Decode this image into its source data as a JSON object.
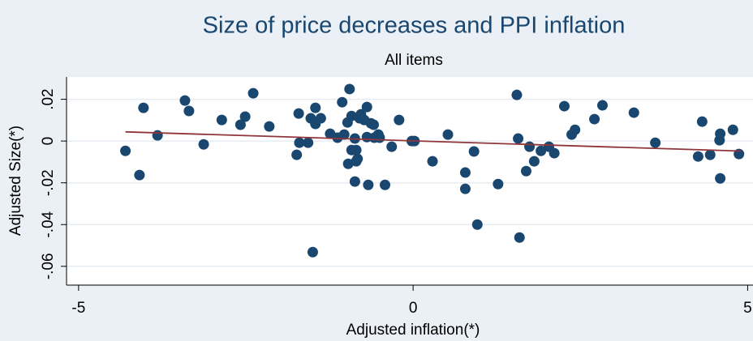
{
  "chart_data": {
    "type": "scatter",
    "title": "Size of price decreases and PPI inflation",
    "subtitle": "All items",
    "x_label": "Adjusted inflation(*)",
    "y_label": "Adjusted Size(*)",
    "xlim": [
      -5.18,
      5.08
    ],
    "ylim": [
      -0.069,
      0.0307
    ],
    "xticks": [
      -5,
      0,
      5
    ],
    "yticks": [
      {
        "value": 0.02,
        "label": ".02"
      },
      0,
      {
        "value": -0.02,
        "label": "-.02"
      },
      {
        "value": -0.04,
        "label": "-.04"
      },
      {
        "value": -0.06,
        "label": "-.06"
      }
    ],
    "grid": true,
    "series": [
      {
        "mode": "markers",
        "color": "#1a476f",
        "x": [
          -4.3,
          -4.09,
          -4.03,
          -3.82,
          -3.41,
          -3.35,
          -3.13,
          -2.86,
          -2.58,
          -2.51,
          -2.39,
          -2.15,
          -1.74,
          -1.71,
          -1.7,
          -1.57,
          -1.53,
          -1.5,
          -1.46,
          -1.46,
          -1.38,
          -1.24,
          -1.13,
          -1.03,
          -1.06,
          -0.98,
          -0.97,
          -0.95,
          -0.92,
          -0.92,
          -0.87,
          -0.87,
          -0.85,
          -0.85,
          -0.83,
          -0.8,
          -0.78,
          -0.73,
          -0.69,
          -0.69,
          -0.67,
          -0.63,
          -0.59,
          -0.58,
          -0.52,
          -0.5,
          -0.42,
          -0.32,
          -0.21,
          -0.02,
          0.02,
          0.29,
          0.52,
          0.78,
          0.78,
          0.91,
          0.96,
          1.27,
          1.55,
          1.57,
          1.59,
          1.69,
          1.74,
          1.81,
          1.91,
          2.03,
          2.11,
          2.26,
          2.37,
          2.42,
          2.71,
          2.83,
          3.3,
          3.62,
          4.26,
          4.32,
          4.44,
          4.58,
          4.59,
          4.59,
          4.78,
          4.87
        ],
        "values": [
          -0.0047,
          -0.0163,
          0.0159,
          0.0027,
          0.0194,
          0.0144,
          -0.0016,
          0.0101,
          0.0078,
          0.0117,
          0.0229,
          0.007,
          -0.0066,
          0.0132,
          -0.0008,
          -0.0008,
          0.0109,
          -0.0532,
          0.0159,
          0.0082,
          0.0109,
          0.0035,
          0.0016,
          0.0031,
          0.0186,
          0.0089,
          -0.0109,
          0.0249,
          0.012,
          -0.0043,
          0.0012,
          -0.0194,
          -0.0097,
          -0.0043,
          -0.0085,
          0.0109,
          0.0128,
          0.0101,
          0.0163,
          0.0019,
          -0.021,
          0.0085,
          0.0078,
          0.0016,
          0.0031,
          0.0016,
          -0.021,
          -0.0027,
          0.0101,
          0,
          0,
          -0.0097,
          0.0031,
          -0.0151,
          -0.0229,
          -0.005,
          -0.04,
          -0.0206,
          0.0221,
          0.0012,
          -0.0462,
          -0.0144,
          -0.0027,
          -0.0097,
          -0.0047,
          -0.0027,
          -0.0058,
          0.0167,
          0.0031,
          0.0054,
          0.0105,
          0.0171,
          0.0136,
          -0.0008,
          -0.0074,
          0.0093,
          -0.0066,
          0.0004,
          0.0035,
          -0.0179,
          0.0054,
          -0.0062
        ]
      },
      {
        "mode": "line",
        "color": "#90353b",
        "x": [
          -4.3,
          4.9
        ],
        "values": [
          0.0044,
          -0.0048
        ]
      }
    ]
  }
}
